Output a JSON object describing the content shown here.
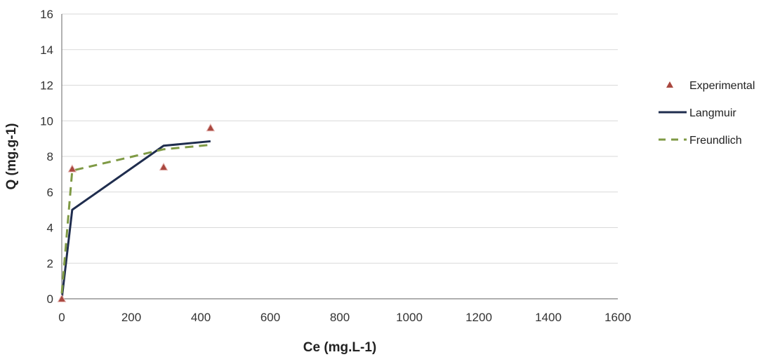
{
  "chart_data": {
    "type": "scatter",
    "title": "",
    "xlabel": "Ce (mg.L-1)",
    "ylabel": "Q (mg.g-1)",
    "xlim": [
      0,
      1600
    ],
    "ylim": [
      0,
      16
    ],
    "xticks": [
      "0",
      "200",
      "400",
      "600",
      "800",
      "1000",
      "1200",
      "1400",
      "1600"
    ],
    "yticks": [
      "0",
      "2",
      "4",
      "6",
      "8",
      "10",
      "12",
      "14",
      "16"
    ],
    "grid": "horizontal",
    "legend_position": "right",
    "series": [
      {
        "name": "Experimental",
        "kind": "marker-triangle",
        "color": "#a9473f",
        "x": [
          0,
          30,
          293,
          428
        ],
        "y": [
          0,
          7.3,
          7.4,
          9.6
        ]
      },
      {
        "name": "Langmuir",
        "kind": "line-solid",
        "color": "#1f2d4e",
        "x": [
          0,
          30,
          293,
          428
        ],
        "y": [
          0,
          5.0,
          8.6,
          8.85
        ]
      },
      {
        "name": "Freundlich",
        "kind": "line-dashed",
        "color": "#7f9a45",
        "x": [
          0,
          30,
          293,
          428
        ],
        "y": [
          0.3,
          7.2,
          8.4,
          8.65
        ]
      }
    ]
  }
}
